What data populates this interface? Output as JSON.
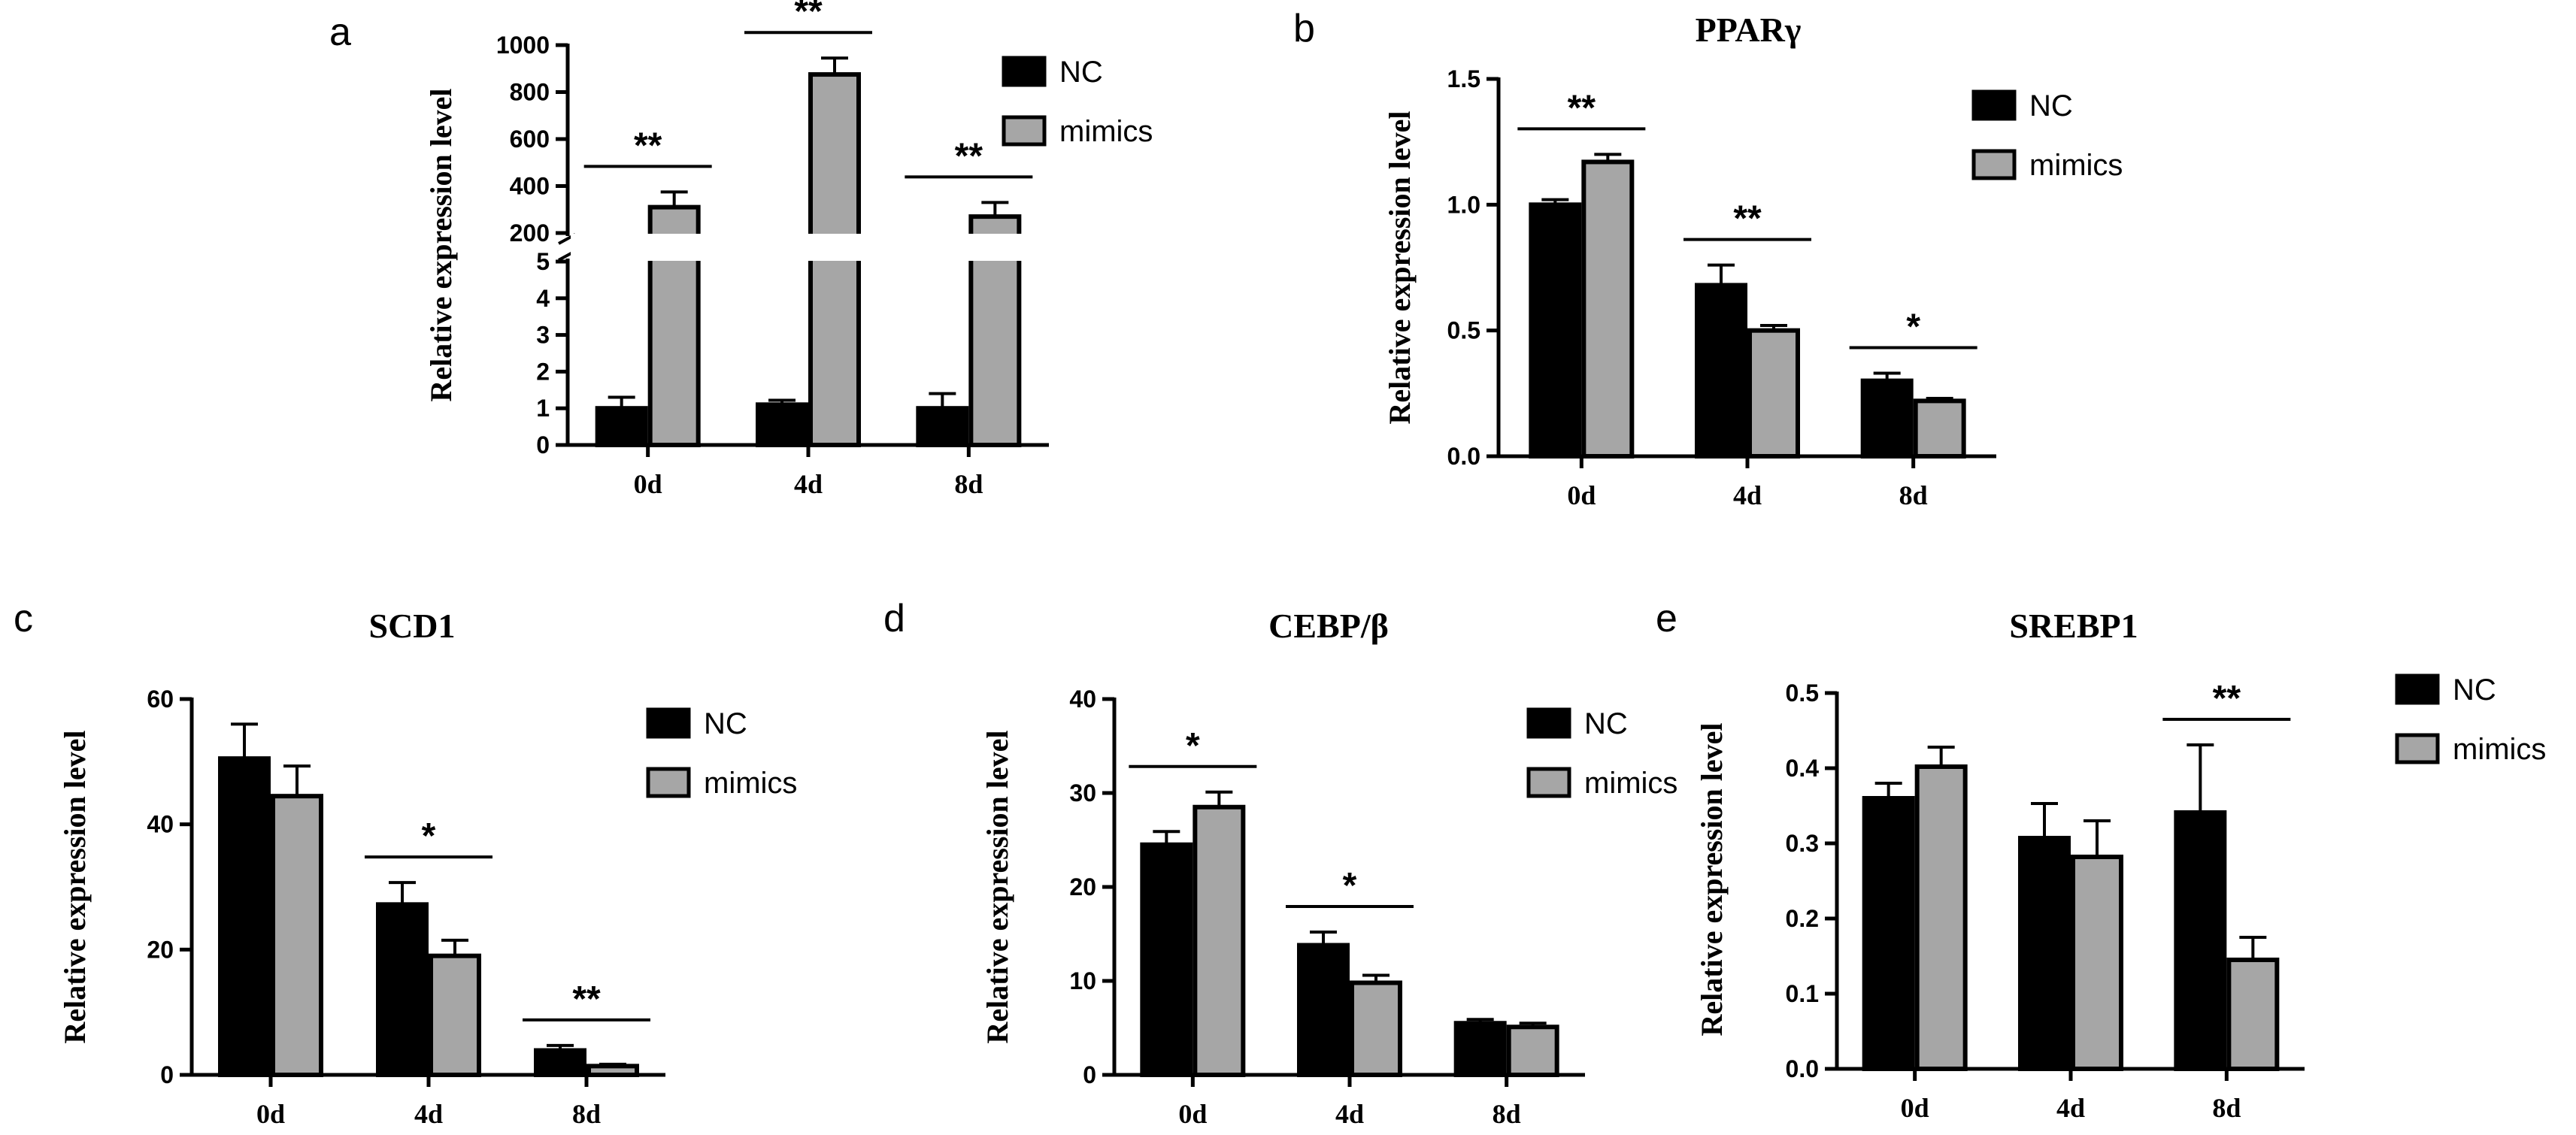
{
  "colors": {
    "nc": "#000000",
    "mimics": "#a6a6a6",
    "axis": "#000000"
  },
  "chart_data": [
    {
      "id": "a",
      "panel_label": "a",
      "type": "bar",
      "title": "",
      "xlabel": "",
      "ylabel": "Relative  expression level",
      "categories": [
        "0d",
        "4d",
        "8d"
      ],
      "series": [
        {
          "name": "NC",
          "values": [
            1.0,
            1.1,
            1.0
          ],
          "errors": [
            0.3,
            0.12,
            0.4
          ]
        },
        {
          "name": "mimics",
          "values": [
            310,
            875,
            270
          ],
          "errors": [
            65,
            70,
            60
          ]
        }
      ],
      "ylim": [
        0,
        1000
      ],
      "axis_break": {
        "lower": [
          0,
          5
        ],
        "upper": [
          200,
          1000
        ]
      },
      "yticks_lower": [
        "0",
        "1",
        "2",
        "3",
        "4",
        "5"
      ],
      "yticks_upper": [
        "200",
        "400",
        "600",
        "800",
        "1000"
      ],
      "legend": [
        "NC",
        "mimics"
      ],
      "significance": [
        "**",
        "**",
        "**"
      ]
    },
    {
      "id": "b",
      "panel_label": "b",
      "type": "bar",
      "title": "PPARγ",
      "xlabel": "",
      "ylabel": "Relative  expression level",
      "categories": [
        "0d",
        "4d",
        "8d"
      ],
      "series": [
        {
          "name": "NC",
          "values": [
            1.0,
            0.68,
            0.3
          ],
          "errors": [
            0.02,
            0.08,
            0.03
          ]
        },
        {
          "name": "mimics",
          "values": [
            1.17,
            0.5,
            0.22
          ],
          "errors": [
            0.03,
            0.02,
            0.01
          ]
        }
      ],
      "ylim": [
        0,
        1.5
      ],
      "yticks": [
        "0.0",
        "0.5",
        "1.0",
        "1.5"
      ],
      "legend": [
        "NC",
        "mimics"
      ],
      "significance": [
        "**",
        "**",
        "*"
      ]
    },
    {
      "id": "c",
      "panel_label": "c",
      "type": "bar",
      "title": "SCD1",
      "xlabel": "",
      "ylabel": "Relative  expression level",
      "categories": [
        "0d",
        "4d",
        "8d"
      ],
      "series": [
        {
          "name": "NC",
          "values": [
            50.5,
            27.2,
            3.9
          ],
          "errors": [
            5.5,
            3.5,
            0.8
          ]
        },
        {
          "name": "mimics",
          "values": [
            44.5,
            19.0,
            1.4
          ],
          "errors": [
            4.8,
            2.5,
            0.3
          ]
        }
      ],
      "ylim": [
        0,
        60
      ],
      "yticks": [
        "0",
        "20",
        "40",
        "60"
      ],
      "legend": [
        "NC",
        "mimics"
      ],
      "significance": [
        "",
        "*",
        "**"
      ]
    },
    {
      "id": "d",
      "panel_label": "d",
      "type": "bar",
      "title": "CEBP/β",
      "xlabel": "",
      "ylabel": "Relative  expression level",
      "categories": [
        "0d",
        "4d",
        "8d"
      ],
      "series": [
        {
          "name": "NC",
          "values": [
            24.5,
            13.8,
            5.5
          ],
          "errors": [
            1.4,
            1.4,
            0.4
          ]
        },
        {
          "name": "mimics",
          "values": [
            28.5,
            9.8,
            5.1
          ],
          "errors": [
            1.6,
            0.8,
            0.4
          ]
        }
      ],
      "ylim": [
        0,
        40
      ],
      "yticks": [
        "0",
        "10",
        "20",
        "30",
        "40"
      ],
      "legend": [
        "NC",
        "mimics"
      ],
      "significance": [
        "*",
        "*",
        ""
      ]
    },
    {
      "id": "e",
      "panel_label": "e",
      "type": "bar",
      "title": "SREBP1",
      "xlabel": "",
      "ylabel": "Relative  expression level",
      "categories": [
        "0d",
        "4d",
        "8d"
      ],
      "series": [
        {
          "name": "NC",
          "values": [
            0.36,
            0.307,
            0.341
          ],
          "errors": [
            0.02,
            0.046,
            0.09
          ]
        },
        {
          "name": "mimics",
          "values": [
            0.402,
            0.282,
            0.145
          ],
          "errors": [
            0.026,
            0.048,
            0.03
          ]
        }
      ],
      "ylim": [
        0,
        0.5
      ],
      "yticks": [
        "0.0",
        "0.1",
        "0.2",
        "0.3",
        "0.4",
        "0.5"
      ],
      "legend": [
        "NC",
        "mimics"
      ],
      "significance": [
        "",
        "",
        "**"
      ]
    }
  ]
}
